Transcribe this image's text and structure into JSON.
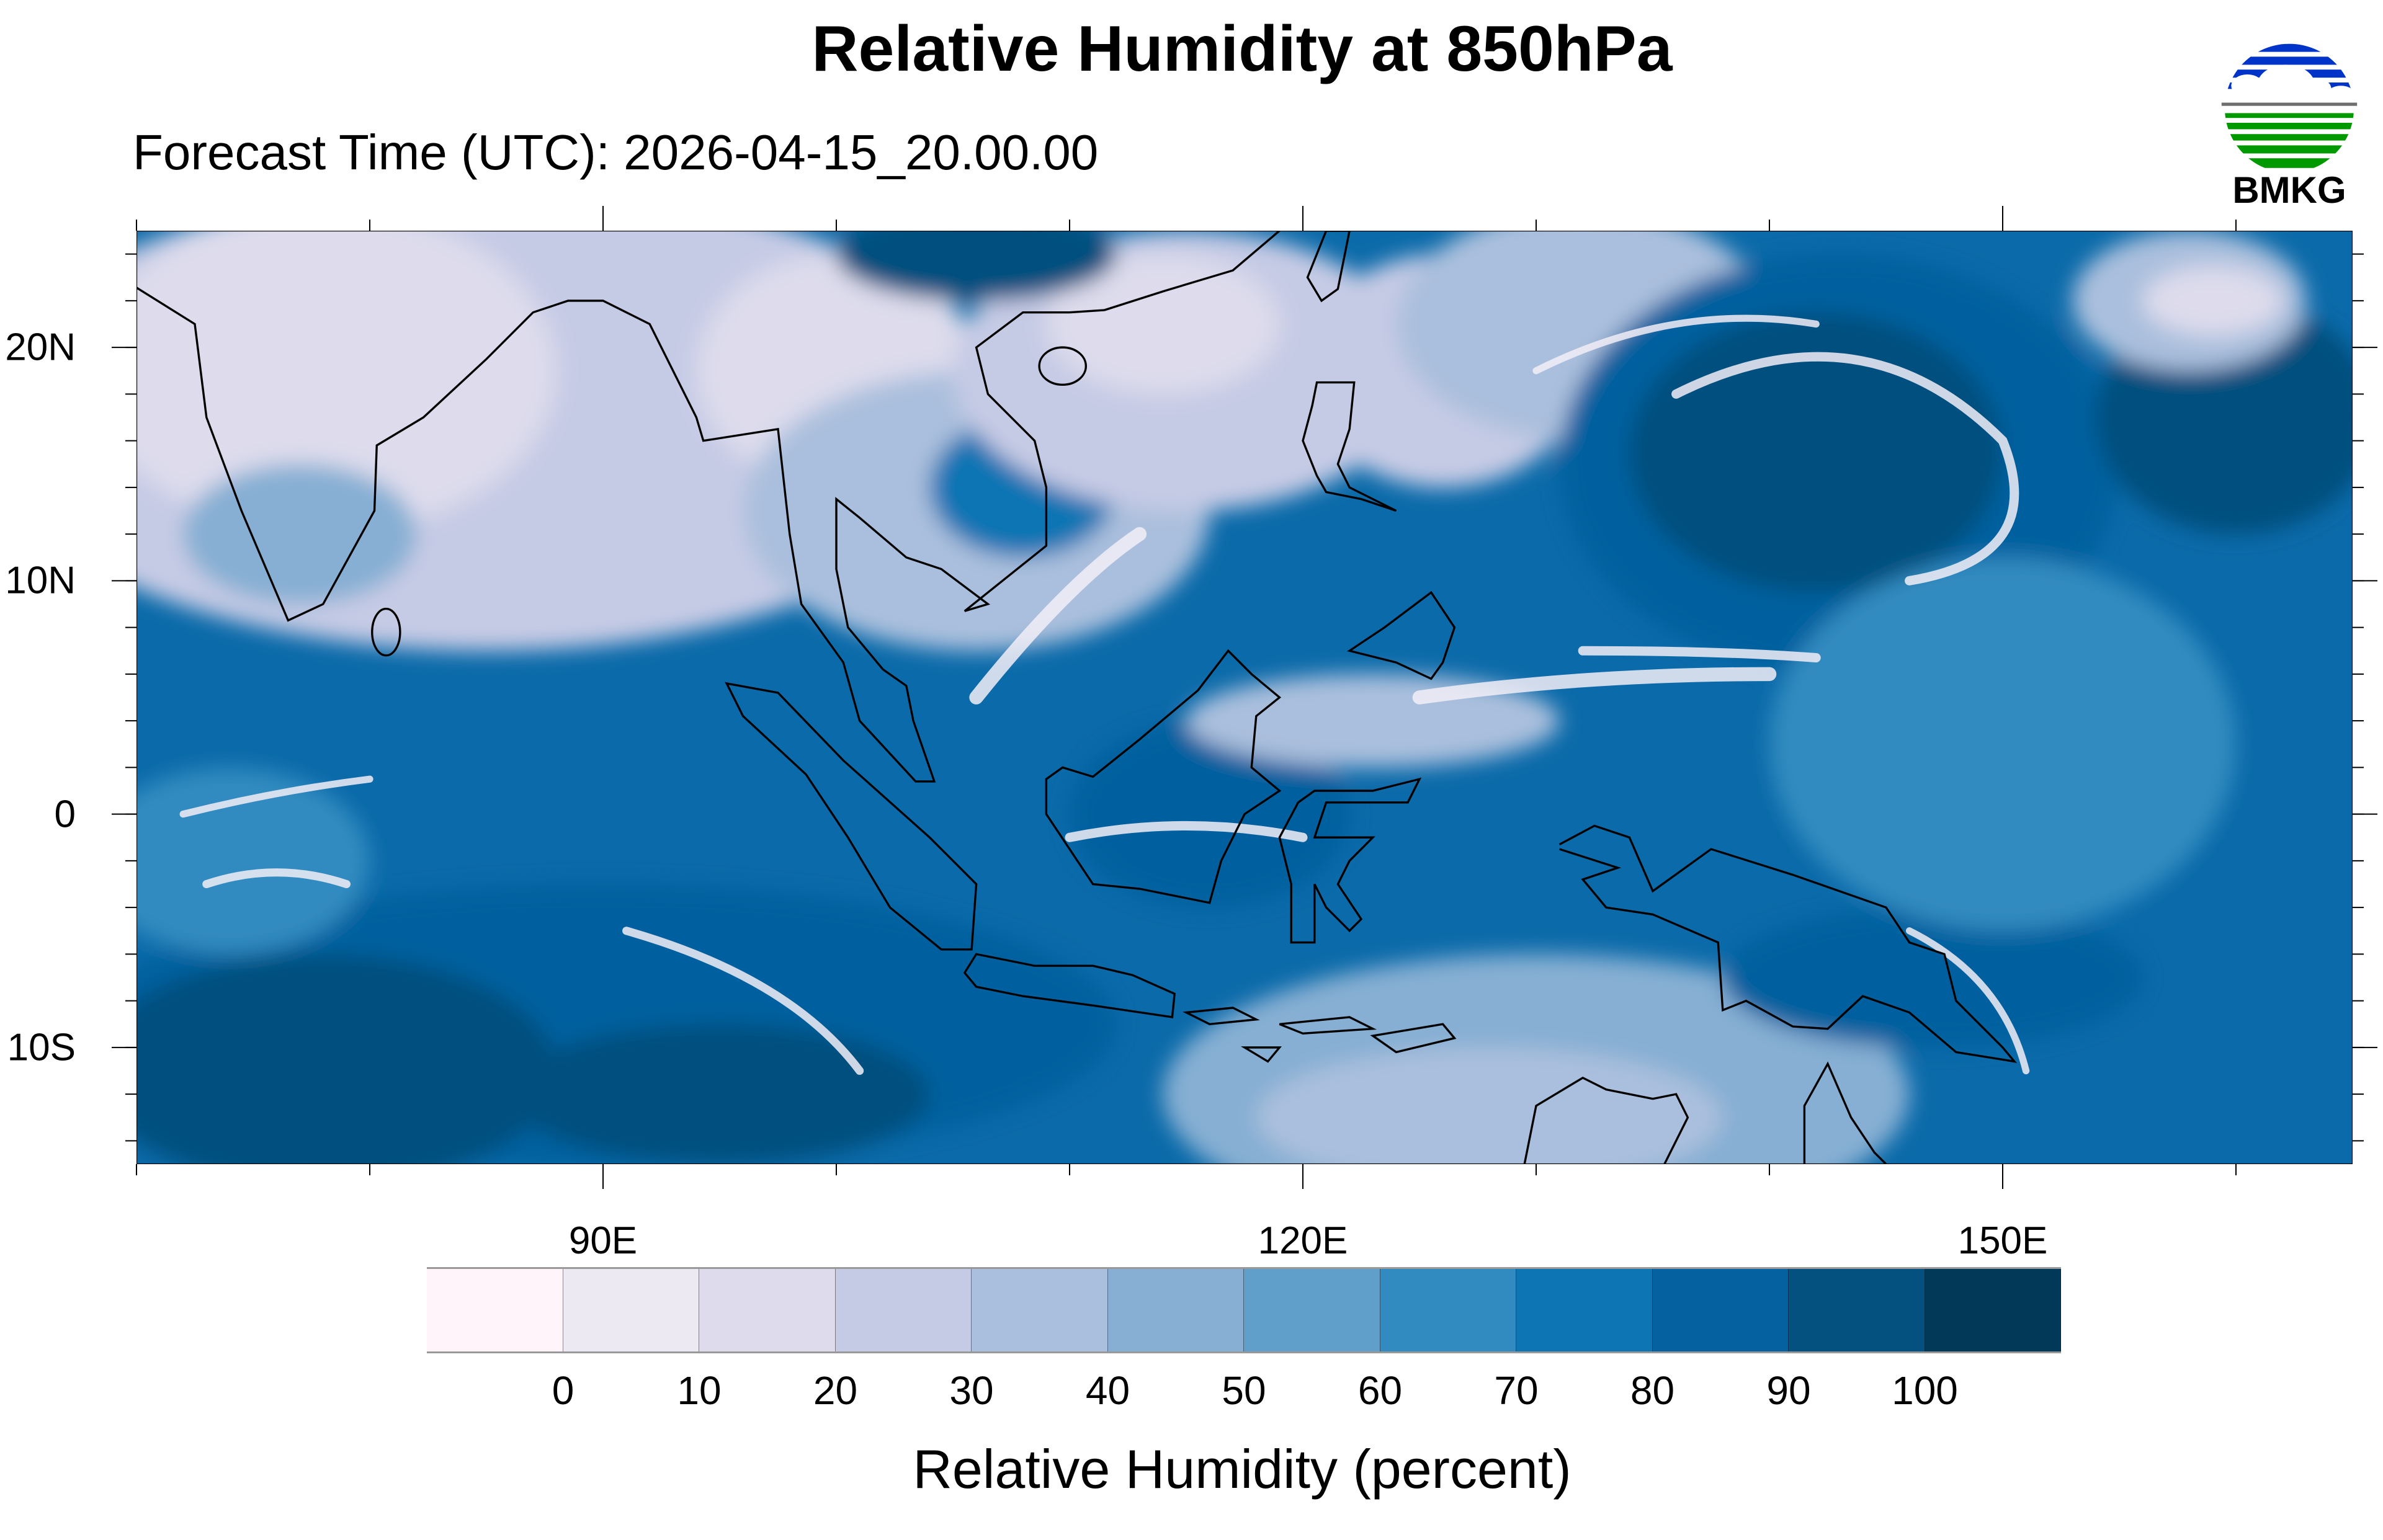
{
  "title": "Relative Humidity at 850hPa",
  "subtitle": "Forecast Time (UTC): 2026-04-15_20.00.00",
  "logo": {
    "text": "BMKG",
    "colors": {
      "sky": "#0033c8",
      "line": "#6e6e6e",
      "land": "#009900"
    }
  },
  "chart_data": {
    "type": "heatmap",
    "title": "Relative Humidity at 850hPa",
    "subtitle": "Forecast Time (UTC): 2026-04-15_20.00.00",
    "x_range": [
      70,
      165
    ],
    "y_range": [
      -15,
      25
    ],
    "x_ticks": [
      {
        "value": 90,
        "label": "90E"
      },
      {
        "value": 120,
        "label": "120E"
      },
      {
        "value": 150,
        "label": "150E"
      }
    ],
    "y_ticks": [
      {
        "value": 20,
        "label": "20N"
      },
      {
        "value": 10,
        "label": "10N"
      },
      {
        "value": 0,
        "label": "0"
      },
      {
        "value": -10,
        "label": "10S"
      }
    ],
    "x_minor_step": 10,
    "y_minor_step": 2,
    "colorbar": {
      "title": "Relative Humidity (percent)",
      "levels": [
        "0",
        "10",
        "20",
        "30",
        "40",
        "50",
        "60",
        "70",
        "80",
        "90",
        "100"
      ],
      "colors": [
        "#fff4fa",
        "#ede9f2",
        "#dddbec",
        "#c6cbe5",
        "#aabfdd",
        "#86afd3",
        "#5f9fca",
        "#328bc0",
        "#0e75b4",
        "#05619f",
        "#04507e",
        "#023858"
      ]
    }
  }
}
